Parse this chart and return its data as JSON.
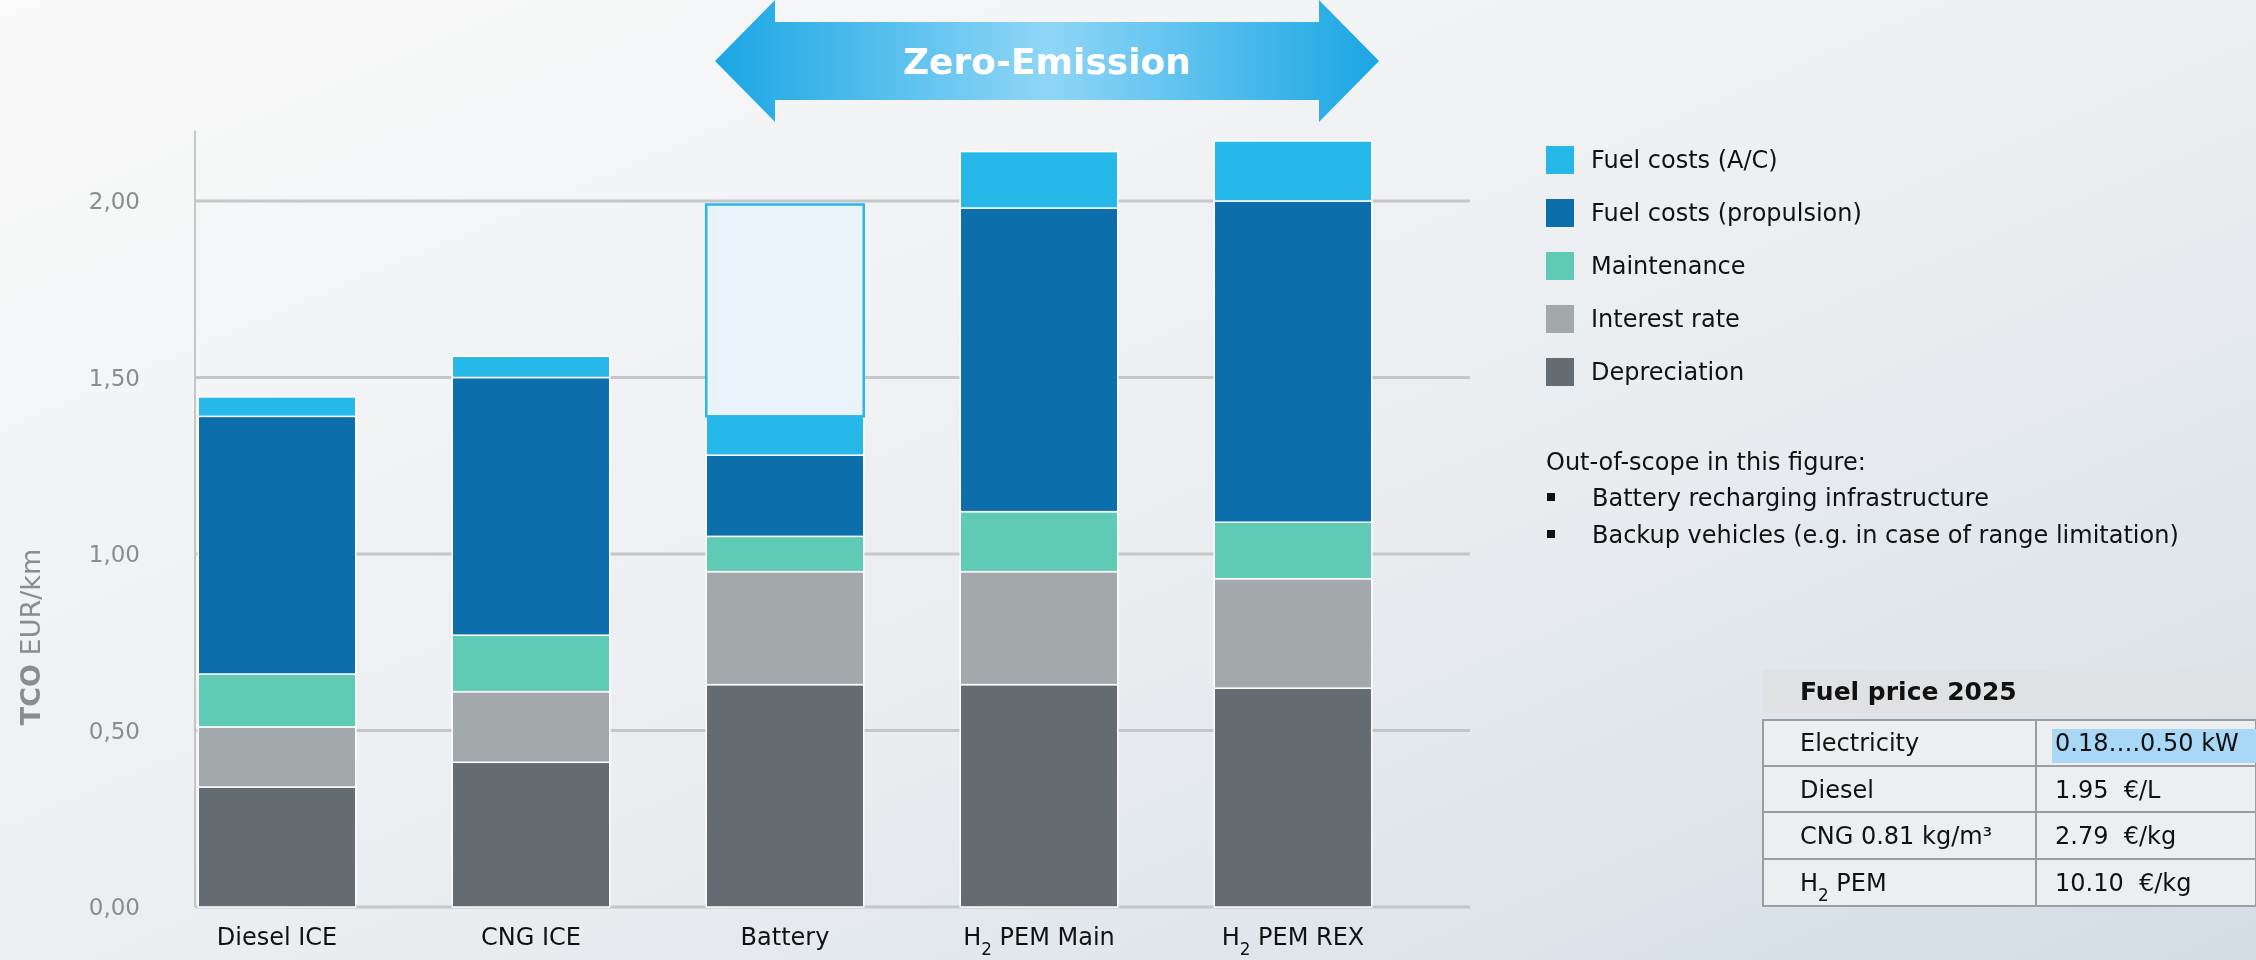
{
  "chart_data": {
    "type": "bar",
    "stacked": true,
    "ylabel": "TCO EUR/km",
    "categories": [
      "Diesel ICE",
      "CNG ICE",
      "Battery",
      "H$_{2}$ PEM Main",
      "H$_{2}$ PEM REX"
    ],
    "series": [
      {
        "name": "Depreciation",
        "color": "#656c71",
        "values": [
          0.34,
          0.41,
          0.63,
          0.63,
          0.62
        ]
      },
      {
        "name": "Interest rate",
        "color": "#a3a8ab",
        "values": [
          0.17,
          0.2,
          0.32,
          0.32,
          0.31
        ]
      },
      {
        "name": "Maintenance",
        "color": "#5fcbb5",
        "values": [
          0.15,
          0.16,
          0.1,
          0.17,
          0.16
        ]
      },
      {
        "name": "Fuel costs (propulsion)",
        "color": "#0c6fab",
        "values": [
          0.73,
          0.73,
          0.23,
          0.86,
          0.91
        ]
      },
      {
        "name": "Fuel costs (A/C)",
        "color": "#27b8ea",
        "values": [
          0.055,
          0.06,
          0.11,
          0.16,
          0.17
        ]
      },
      {
        "color": "#eaf2fa",
        "values": [
          null,
          null,
          0.6,
          null,
          null
        ]
      }
    ],
    "yticks": [
      {
        "value": 0,
        "label": "0,00"
      },
      {
        "value": 0.5,
        "label": "0,50"
      },
      {
        "value": 1,
        "label": "1,00"
      },
      {
        "value": 1.5,
        "label": "1,50"
      },
      {
        "value": 2,
        "label": "2,00"
      }
    ],
    "ylim": [
      0,
      2.2
    ],
    "grid": "y",
    "legend": "right",
    "annotations": [
      "Zero-Emission",
      "Out-of-scope in this figure:",
      "Battery recharging infrastructure",
      "Backup vehicles (e.g. in case of range limitation)",
      "Fuel price 2025",
      "Electricity",
      "0.18….0.50 kW",
      "Diesel",
      "1.95  €/L",
      "CNG 0.81 kg/m³",
      "2.79  €/kg",
      "H$_{2}$ PEM",
      "10.10  €/kg"
    ]
  }
}
